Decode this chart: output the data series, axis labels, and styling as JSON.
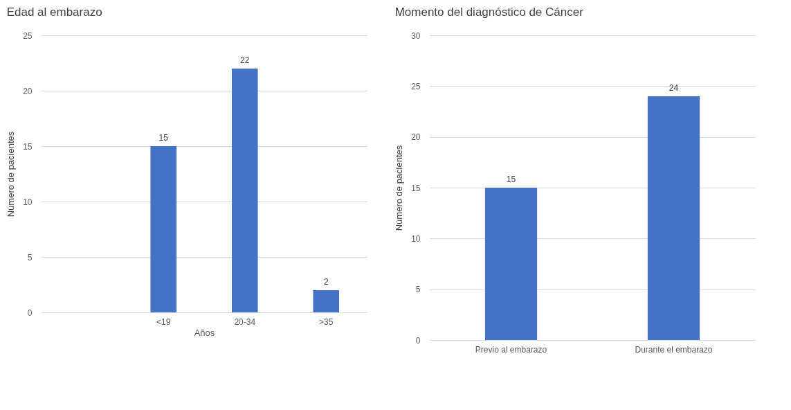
{
  "chart_data": [
    {
      "type": "bar",
      "title": "Edad al embarazo",
      "xlabel": "Años",
      "ylabel": "Número de pacientes",
      "categories": [
        null,
        "<19",
        "20-34",
        ">35"
      ],
      "values": [
        null,
        15,
        22,
        2
      ],
      "color": "#4472c4",
      "ylim": [
        0,
        25
      ],
      "yticks": [
        0,
        5,
        10,
        15,
        20,
        25
      ],
      "grid": "y",
      "data_labels": true
    },
    {
      "type": "bar",
      "title": "Momento del diagnóstico de Cáncer",
      "ylabel": "Número de pacientes",
      "categories": [
        "Previo al embarazo",
        "Durante el embarazo"
      ],
      "values": [
        15,
        24
      ],
      "color": "#4472c4",
      "ylim": [
        0,
        30
      ],
      "yticks": [
        0,
        5,
        10,
        15,
        20,
        25,
        30
      ],
      "grid": "y",
      "data_labels": true
    }
  ]
}
